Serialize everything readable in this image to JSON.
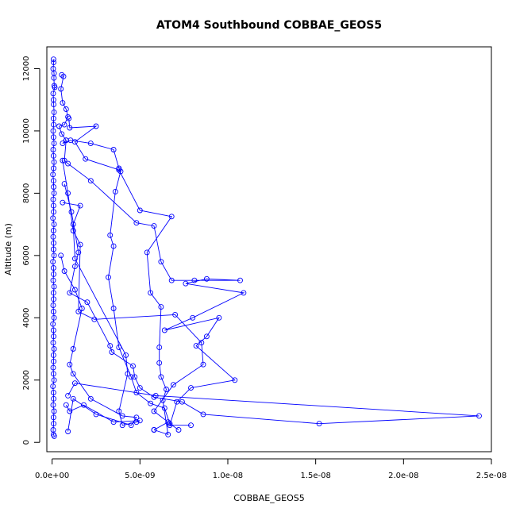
{
  "chart_data": {
    "type": "line",
    "title": "ATOM4 Southbound COBBAE_GEOS5",
    "xlabel": "COBBAE_GEOS5",
    "ylabel": "Altitude (m)",
    "xlim": [
      -3e-10,
      2.5e-08
    ],
    "ylim": [
      -300,
      12700
    ],
    "x_ticks": [
      0,
      5e-09,
      1e-08,
      1.5e-08,
      2e-08,
      2.5e-08
    ],
    "x_tick_labels": [
      "0.0e+00",
      "5.0e-09",
      "1.0e-08",
      "1.5e-08",
      "2.0e-08",
      "2.5e-08"
    ],
    "y_ticks": [
      0,
      2000,
      4000,
      6000,
      8000,
      10000,
      12000
    ],
    "y_tick_labels": [
      "0",
      "2000",
      "4000",
      "6000",
      "8000",
      "10000",
      "12000"
    ],
    "grid": false,
    "legend": "none",
    "colors": {
      "series": "#0000ff",
      "axis": "#000000",
      "background": "#ffffff"
    },
    "series": [
      {
        "marker": "open-circle",
        "points": [
          [
            8e-11,
            12300
          ],
          [
            9e-11,
            12200
          ],
          [
            6e-11,
            12000
          ],
          [
            1.1e-10,
            11850
          ],
          [
            1e-10,
            11700
          ],
          [
            1.2e-10,
            11450
          ],
          [
            1.5e-10,
            11400
          ],
          [
            6e-11,
            11200
          ],
          [
            8e-11,
            11000
          ],
          [
            9e-11,
            10850
          ],
          [
            1.1e-10,
            10600
          ],
          [
            8e-11,
            10400
          ],
          [
            9e-11,
            10200
          ],
          [
            6e-11,
            10000
          ],
          [
            8e-11,
            9800
          ],
          [
            1.1e-10,
            9600
          ],
          [
            6e-11,
            9400
          ],
          [
            8e-11,
            9200
          ],
          [
            1.1e-10,
            9000
          ],
          [
            9e-11,
            8800
          ],
          [
            5e-11,
            8600
          ],
          [
            8e-11,
            8400
          ],
          [
            9e-11,
            8200
          ],
          [
            1.1e-10,
            8000
          ],
          [
            6e-11,
            7800
          ],
          [
            8e-11,
            7600
          ],
          [
            9e-11,
            7400
          ],
          [
            5e-11,
            7200
          ],
          [
            1.1e-10,
            7000
          ],
          [
            8e-11,
            6800
          ],
          [
            6e-11,
            6600
          ],
          [
            9e-11,
            6400
          ],
          [
            8e-11,
            6200
          ],
          [
            1.1e-10,
            6000
          ],
          [
            5e-11,
            5800
          ],
          [
            8e-11,
            5600
          ],
          [
            9e-11,
            5400
          ],
          [
            6e-11,
            5200
          ],
          [
            1.1e-10,
            5000
          ],
          [
            8e-11,
            4800
          ],
          [
            9e-11,
            4600
          ],
          [
            6e-11,
            4400
          ],
          [
            8e-11,
            4200
          ],
          [
            1.1e-10,
            4000
          ],
          [
            5e-11,
            3800
          ],
          [
            8e-11,
            3600
          ],
          [
            9e-11,
            3400
          ],
          [
            6e-11,
            3200
          ],
          [
            1.1e-10,
            3000
          ],
          [
            8e-11,
            2800
          ],
          [
            9e-11,
            2600
          ],
          [
            6e-11,
            2400
          ],
          [
            8e-11,
            2200
          ],
          [
            1.1e-10,
            2000
          ],
          [
            5e-11,
            1800
          ],
          [
            8e-11,
            1600
          ],
          [
            9e-11,
            1400
          ],
          [
            6e-11,
            1200
          ],
          [
            1.1e-10,
            1000
          ],
          [
            8e-11,
            800
          ],
          [
            9e-11,
            600
          ],
          [
            6e-11,
            400
          ],
          [
            8e-11,
            250
          ],
          [
            1.2e-10,
            200
          ]
        ]
      },
      {
        "marker": "open-circle",
        "points": [
          [
            5.5e-10,
            11800
          ],
          [
            6.5e-10,
            11750
          ],
          [
            5e-10,
            11350
          ],
          [
            6e-10,
            10900
          ],
          [
            8e-10,
            10700
          ],
          [
            9e-10,
            10450
          ],
          [
            7e-10,
            10200
          ],
          [
            4e-10,
            10150
          ],
          [
            5.5e-10,
            9900
          ],
          [
            8e-10,
            9700
          ],
          [
            6e-10,
            9600
          ],
          [
            1.05e-09,
            9700
          ],
          [
            2.2e-09,
            9600
          ],
          [
            3.5e-09,
            9400
          ],
          [
            3.8e-09,
            8800
          ],
          [
            3.9e-09,
            8700
          ],
          [
            3.6e-09,
            8050
          ],
          [
            3.3e-09,
            6650
          ],
          [
            3.5e-09,
            6300
          ],
          [
            3.2e-09,
            5300
          ],
          [
            3.5e-09,
            4300
          ],
          [
            3.8e-09,
            3050
          ],
          [
            4.5e-09,
            2100
          ],
          [
            4.8e-09,
            1600
          ],
          [
            5.6e-09,
            1250
          ],
          [
            6.4e-09,
            1100
          ],
          [
            6.7e-09,
            600
          ],
          [
            7.2e-09,
            400
          ]
        ]
      },
      {
        "marker": "open-circle",
        "points": [
          [
            9.5e-10,
            10400
          ],
          [
            1e-09,
            10100
          ],
          [
            2.5e-09,
            10150
          ],
          [
            1.3e-09,
            9650
          ],
          [
            1.9e-09,
            9100
          ],
          [
            3.8e-09,
            8750
          ],
          [
            5e-09,
            7450
          ],
          [
            6.8e-09,
            7250
          ],
          [
            5.4e-09,
            6100
          ],
          [
            5.6e-09,
            4800
          ],
          [
            6.2e-09,
            4350
          ],
          [
            6.1e-09,
            3050
          ],
          [
            6.1e-09,
            2550
          ],
          [
            6.2e-09,
            2100
          ],
          [
            6.5e-09,
            1700
          ],
          [
            6.3e-09,
            1350
          ],
          [
            6.6e-09,
            250
          ],
          [
            5.8e-09,
            400
          ]
        ]
      },
      {
        "marker": "open-circle",
        "points": [
          [
            8e-10,
            9700
          ],
          [
            7e-10,
            9050
          ],
          [
            9e-10,
            8950
          ],
          [
            2.2e-09,
            8400
          ],
          [
            4.8e-09,
            7050
          ],
          [
            5.8e-09,
            6950
          ],
          [
            6.2e-09,
            5800
          ],
          [
            6.8e-09,
            5200
          ],
          [
            8.1e-09,
            5200
          ],
          [
            1.07e-08,
            5200
          ],
          [
            8.8e-09,
            5250
          ],
          [
            7.6e-09,
            5100
          ],
          [
            1.09e-08,
            4800
          ],
          [
            8e-09,
            4000
          ],
          [
            6.4e-09,
            3600
          ],
          [
            9.5e-09,
            4000
          ],
          [
            8.8e-09,
            3400
          ],
          [
            8.2e-09,
            3100
          ],
          [
            1.04e-08,
            2000
          ],
          [
            7.9e-09,
            1750
          ],
          [
            7.1e-09,
            1300
          ],
          [
            6.7e-09,
            550
          ],
          [
            7.9e-09,
            550
          ]
        ]
      },
      {
        "marker": "open-circle",
        "points": [
          [
            6e-10,
            9050
          ],
          [
            9e-10,
            8000
          ],
          [
            1.2e-09,
            6800
          ],
          [
            1.6e-09,
            6350
          ],
          [
            1.5e-09,
            4200
          ],
          [
            2.4e-09,
            3950
          ],
          [
            7e-09,
            4100
          ],
          [
            8.5e-09,
            3200
          ],
          [
            8.6e-09,
            2500
          ],
          [
            6.9e-09,
            1850
          ],
          [
            5.8e-09,
            1000
          ],
          [
            6.6e-09,
            650
          ],
          [
            5.8e-09,
            400
          ]
        ]
      },
      {
        "marker": "open-circle",
        "points": [
          [
            7e-10,
            8300
          ],
          [
            1.1e-09,
            7400
          ],
          [
            1.5e-09,
            6100
          ],
          [
            1.3e-09,
            5650
          ],
          [
            1e-09,
            4800
          ],
          [
            2e-09,
            4500
          ],
          [
            3.3e-09,
            3100
          ],
          [
            3.4e-09,
            2900
          ],
          [
            4.6e-09,
            2450
          ],
          [
            4.7e-09,
            2100
          ],
          [
            5e-09,
            1750
          ],
          [
            5.8e-09,
            1450
          ],
          [
            7.4e-09,
            1300
          ],
          [
            8.6e-09,
            900
          ],
          [
            1.52e-08,
            600
          ],
          [
            2.43e-08,
            850
          ],
          [
            5.9e-09,
            1500
          ],
          [
            1.3e-09,
            1900
          ],
          [
            9e-10,
            1500
          ]
        ]
      },
      {
        "marker": "open-circle",
        "points": [
          [
            6e-10,
            7700
          ],
          [
            1.6e-09,
            7600
          ],
          [
            1.2e-09,
            7000
          ],
          [
            1.3e-09,
            5900
          ],
          [
            4.2e-09,
            2800
          ],
          [
            4.3e-09,
            2200
          ],
          [
            3.8e-09,
            1000
          ],
          [
            4e-09,
            550
          ],
          [
            4.8e-09,
            650
          ],
          [
            5e-09,
            700
          ],
          [
            3.5e-09,
            650
          ],
          [
            1.8e-09,
            1200
          ],
          [
            1e-09,
            1000
          ],
          [
            8e-10,
            1200
          ]
        ]
      },
      {
        "marker": "open-circle",
        "points": [
          [
            5e-10,
            6000
          ],
          [
            7e-10,
            5500
          ],
          [
            1.3e-09,
            4900
          ],
          [
            1.7e-09,
            4300
          ],
          [
            1.2e-09,
            3000
          ],
          [
            1e-09,
            2500
          ],
          [
            1.2e-09,
            2200
          ],
          [
            2.2e-09,
            1400
          ],
          [
            4e-09,
            850
          ],
          [
            4.8e-09,
            800
          ],
          [
            4.5e-09,
            550
          ],
          [
            2.5e-09,
            900
          ],
          [
            1.2e-09,
            1400
          ],
          [
            9e-10,
            350
          ]
        ]
      }
    ]
  }
}
